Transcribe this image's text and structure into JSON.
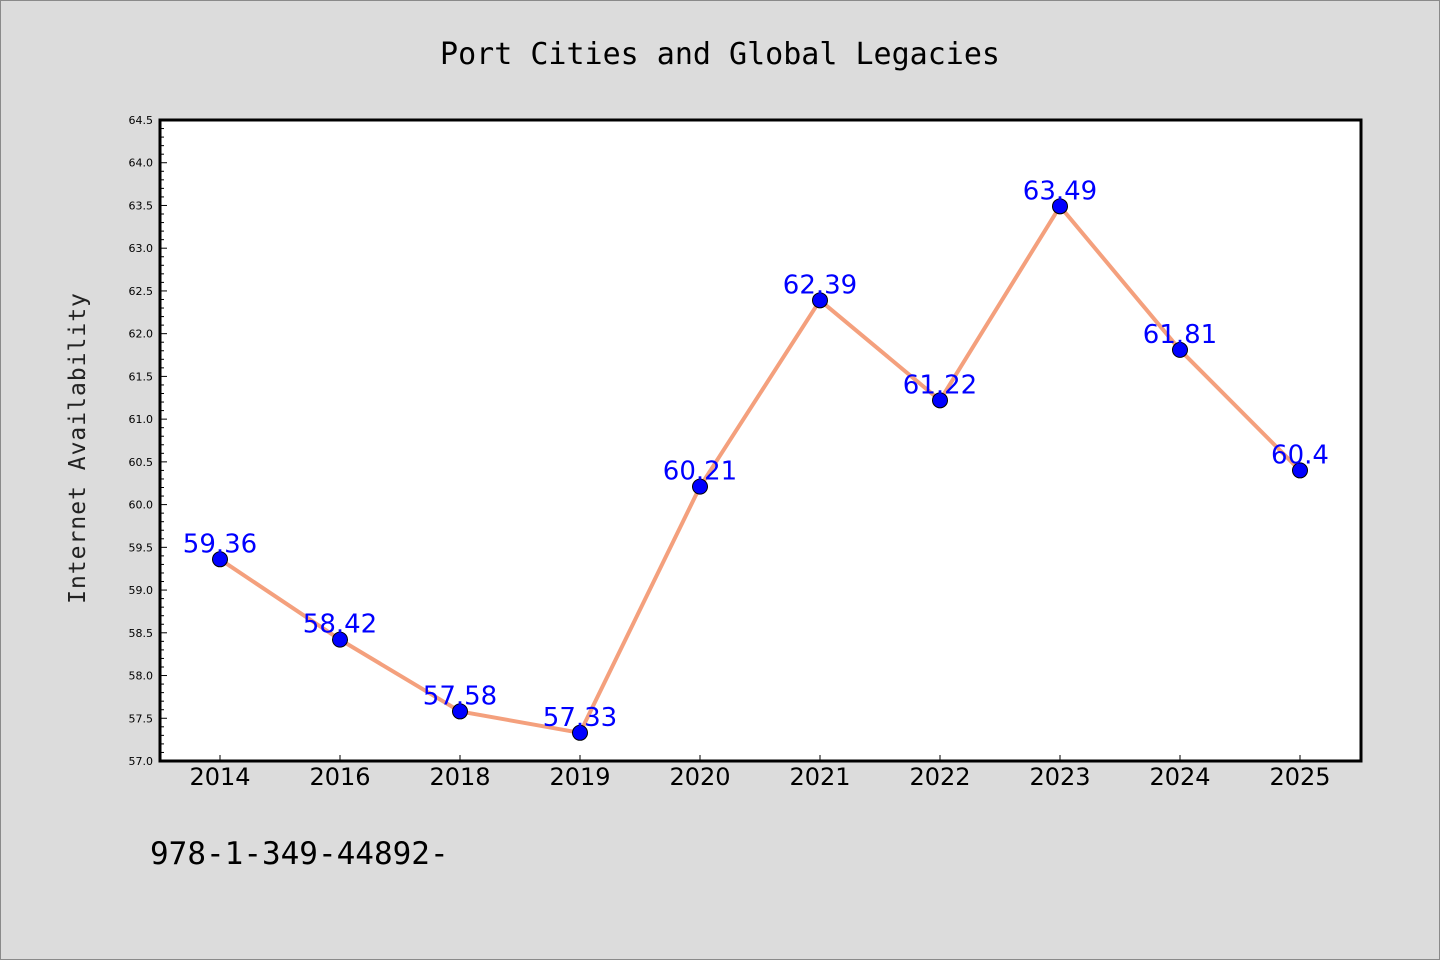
{
  "chart_data": {
    "type": "line",
    "title": "Port Cities and Global Legacies",
    "xlabel": "",
    "ylabel": "Internet Availability",
    "categories": [
      "2014",
      "2016",
      "2018",
      "2019",
      "2020",
      "2021",
      "2022",
      "2023",
      "2024",
      "2025"
    ],
    "series": [
      {
        "values": [
          59.36,
          58.42,
          57.58,
          57.33,
          60.21,
          62.39,
          61.22,
          63.49,
          61.81,
          60.4
        ],
        "data_labels": [
          "59.36",
          "58.42",
          "57.58",
          "57.33",
          "60.21",
          "62.39",
          "61.22",
          "63.49",
          "61.81",
          "60.4"
        ],
        "line_color": "#f4a07d",
        "marker_color": "#0000ff",
        "label_color": "#0000ff"
      }
    ],
    "ylim": [
      57.0,
      64.5
    ],
    "yticks": [
      "57.0",
      "57.5",
      "58.0",
      "58.5",
      "59.0",
      "59.5",
      "60.0",
      "60.5",
      "61.0",
      "61.5",
      "62.0",
      "62.5",
      "63.0",
      "63.5",
      "64.0",
      "64.5"
    ],
    "grid": false,
    "legend": "none"
  },
  "footer_text": "978-1-349-44892-",
  "colors": {
    "background": "#dcdcdc",
    "plot_background": "#ffffff"
  }
}
